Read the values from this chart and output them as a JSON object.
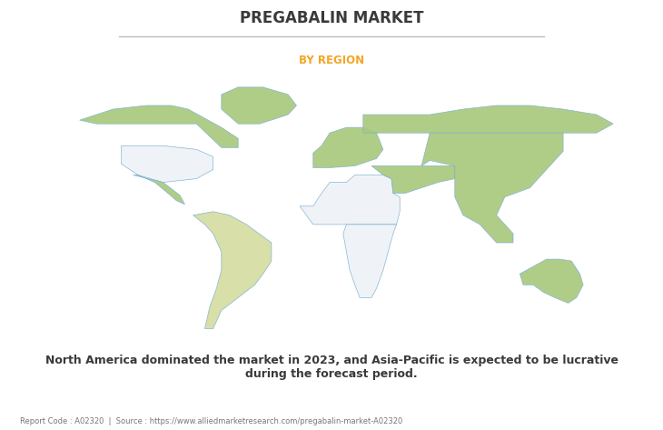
{
  "title": "PREGABALIN MARKET",
  "subtitle": "BY REGION",
  "title_color": "#3a3a3a",
  "subtitle_color": "#f5a623",
  "description": "North America dominated the market in 2023, and Asia-Pacific is expected to be lucrative\nduring the forecast period.",
  "footer": "Report Code : A02320  |  Source : https://www.alliedmarketresearch.com/pregabalin-market-A02320",
  "bg_color": "#ffffff",
  "map_green": "#a8c87a",
  "map_light_green": "#c8d8a0",
  "map_yellow_green": "#d4dca0",
  "map_white": "#eef2f8",
  "map_outline": "#7ab0d0",
  "shadow_color": "#c0c0c0",
  "fig_width": 7.3,
  "fig_height": 4.73
}
